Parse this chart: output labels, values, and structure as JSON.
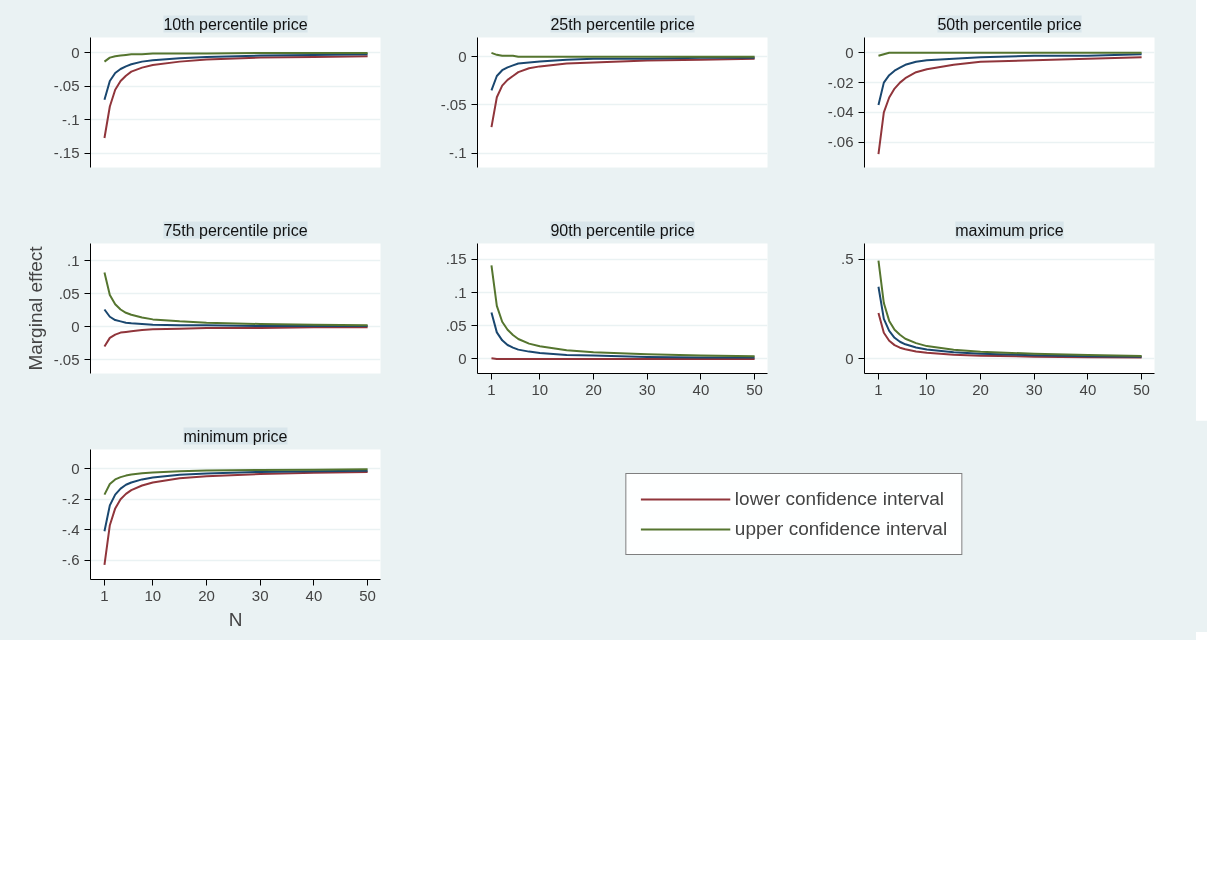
{
  "chart_data": [
    {
      "type": "line",
      "title": "10th percentile price",
      "x": [
        1,
        2,
        3,
        4,
        5,
        6,
        8,
        10,
        15,
        20,
        30,
        40,
        50
      ],
      "xlim": [
        -1.6,
        52.4
      ],
      "xticks": [
        1,
        10,
        20,
        30,
        40,
        50
      ],
      "ylim": [
        -0.171,
        0.023
      ],
      "yticks": [
        {
          "value": -0.15,
          "label": "-.15"
        },
        {
          "value": -0.1,
          "label": "-.1"
        },
        {
          "value": -0.05,
          "label": "-.05"
        },
        0
      ],
      "grid": "y",
      "tick_labels": "y",
      "series": [
        {
          "color": "#90353b",
          "values": [
            -0.127,
            -0.08,
            -0.055,
            -0.042,
            -0.034,
            -0.028,
            -0.022,
            -0.018,
            -0.013,
            -0.01,
            -0.007,
            -0.006,
            -0.005
          ]
        },
        {
          "color": "#1a476f",
          "values": [
            -0.07,
            -0.042,
            -0.03,
            -0.024,
            -0.02,
            -0.017,
            -0.013,
            -0.011,
            -0.008,
            -0.006,
            -0.004,
            -0.003,
            -0.002
          ]
        },
        {
          "color": "#55752f",
          "values": [
            -0.013,
            -0.007,
            -0.005,
            -0.004,
            -0.003,
            -0.002,
            -0.002,
            -0.001,
            -0.001,
            -0.001,
            0,
            0,
            0
          ]
        }
      ]
    },
    {
      "type": "line",
      "title": "25th percentile price",
      "x": [
        1,
        2,
        3,
        4,
        5,
        6,
        8,
        10,
        15,
        20,
        30,
        40,
        50
      ],
      "xlim": [
        -1.6,
        52.4
      ],
      "xticks": [
        1,
        10,
        20,
        30,
        40,
        50
      ],
      "ylim": [
        -0.115,
        0.02
      ],
      "yticks": [
        {
          "value": -0.1,
          "label": "-.1"
        },
        {
          "value": -0.05,
          "label": "-.05"
        },
        0
      ],
      "grid": "y",
      "tick_labels": "y",
      "series": [
        {
          "color": "#90353b",
          "values": [
            -0.073,
            -0.042,
            -0.03,
            -0.024,
            -0.02,
            -0.016,
            -0.012,
            -0.01,
            -0.007,
            -0.006,
            -0.004,
            -0.003,
            -0.002
          ]
        },
        {
          "color": "#1a476f",
          "values": [
            -0.035,
            -0.02,
            -0.014,
            -0.011,
            -0.009,
            -0.007,
            -0.006,
            -0.005,
            -0.003,
            -0.002,
            -0.002,
            -0.001,
            -0.001
          ]
        },
        {
          "color": "#55752f",
          "values": [
            0.004,
            0.002,
            0.001,
            0.001,
            0.001,
            0,
            0,
            0,
            0,
            0,
            0,
            0,
            0
          ]
        }
      ]
    },
    {
      "type": "line",
      "title": "50th percentile price",
      "x": [
        1,
        2,
        3,
        4,
        5,
        6,
        8,
        10,
        15,
        20,
        30,
        40,
        50
      ],
      "xlim": [
        -1.6,
        52.4
      ],
      "xticks": [
        1,
        10,
        20,
        30,
        40,
        50
      ],
      "ylim": [
        -0.077,
        0.0103
      ],
      "yticks": [
        {
          "value": -0.06,
          "label": "-.06"
        },
        {
          "value": -0.04,
          "label": "-.04"
        },
        {
          "value": -0.02,
          "label": "-.02"
        },
        0
      ],
      "grid": "y",
      "tick_labels": "y",
      "series": [
        {
          "color": "#90353b",
          "values": [
            -0.068,
            -0.04,
            -0.03,
            -0.024,
            -0.02,
            -0.017,
            -0.013,
            -0.011,
            -0.008,
            -0.006,
            -0.005,
            -0.004,
            -0.003
          ]
        },
        {
          "color": "#1a476f",
          "values": [
            -0.035,
            -0.02,
            -0.015,
            -0.012,
            -0.01,
            -0.008,
            -0.006,
            -0.005,
            -0.004,
            -0.003,
            -0.002,
            -0.002,
            -0.001
          ]
        },
        {
          "color": "#55752f",
          "values": [
            -0.002,
            -0.001,
            0,
            0,
            0,
            0,
            0,
            0,
            0,
            0,
            0,
            0,
            0
          ]
        }
      ]
    },
    {
      "type": "line",
      "title": "75th percentile price",
      "ylabel": "Marginal effect",
      "x": [
        1,
        2,
        3,
        4,
        5,
        6,
        8,
        10,
        15,
        20,
        30,
        40,
        50
      ],
      "xlim": [
        -1.6,
        52.4
      ],
      "xticks": [
        1,
        10,
        20,
        30,
        40,
        50
      ],
      "ylim": [
        -0.071,
        0.126
      ],
      "yticks": [
        {
          "value": -0.05,
          "label": "-.05"
        },
        0,
        {
          "value": 0.05,
          "label": ".05"
        },
        {
          "value": 0.1,
          "label": ".1"
        }
      ],
      "grid": "y",
      "tick_labels": "y",
      "series": [
        {
          "color": "#90353b",
          "values": [
            -0.03,
            -0.017,
            -0.012,
            -0.009,
            -0.008,
            -0.007,
            -0.005,
            -0.004,
            -0.003,
            -0.002,
            -0.002,
            -0.001,
            -0.001
          ]
        },
        {
          "color": "#1a476f",
          "values": [
            0.026,
            0.015,
            0.01,
            0.008,
            0.006,
            0.005,
            0.004,
            0.003,
            0.002,
            0.002,
            0.001,
            0.001,
            0.001
          ]
        },
        {
          "color": "#55752f",
          "values": [
            0.082,
            0.048,
            0.034,
            0.026,
            0.021,
            0.018,
            0.014,
            0.011,
            0.008,
            0.006,
            0.004,
            0.003,
            0.002
          ]
        }
      ]
    },
    {
      "type": "line",
      "title": "90th percentile price",
      "x": [
        1,
        2,
        3,
        4,
        5,
        6,
        8,
        10,
        15,
        20,
        30,
        40,
        50
      ],
      "xlim": [
        -1.6,
        52.4
      ],
      "xticks": [
        1,
        10,
        20,
        30,
        40,
        50
      ],
      "ylim": [
        -0.022,
        0.174
      ],
      "yticks": [
        0,
        {
          "value": 0.05,
          "label": ".05"
        },
        {
          "value": 0.1,
          "label": ".1"
        },
        {
          "value": 0.15,
          "label": ".15"
        }
      ],
      "grid": "y",
      "series": [
        {
          "color": "#90353b",
          "values": [
            0.001,
            0,
            0,
            0,
            0,
            0,
            0,
            0,
            0,
            0,
            0,
            0,
            0
          ]
        },
        {
          "color": "#1a476f",
          "values": [
            0.07,
            0.04,
            0.028,
            0.021,
            0.017,
            0.014,
            0.011,
            0.009,
            0.006,
            0.005,
            0.003,
            0.002,
            0.002
          ]
        },
        {
          "color": "#55752f",
          "values": [
            0.141,
            0.08,
            0.056,
            0.044,
            0.036,
            0.03,
            0.023,
            0.019,
            0.013,
            0.01,
            0.007,
            0.005,
            0.004
          ]
        }
      ]
    },
    {
      "type": "line",
      "title": "maximum price",
      "x": [
        1,
        2,
        3,
        4,
        5,
        6,
        8,
        10,
        15,
        20,
        30,
        40,
        50
      ],
      "xlim": [
        -1.6,
        52.4
      ],
      "xticks": [
        1,
        10,
        20,
        30,
        40,
        50
      ],
      "ylim": [
        -0.075,
        0.58
      ],
      "yticks": [
        0,
        {
          "value": 0.5,
          "label": ".5"
        }
      ],
      "grid": "y",
      "series": [
        {
          "color": "#90353b",
          "values": [
            0.23,
            0.13,
            0.09,
            0.068,
            0.055,
            0.047,
            0.036,
            0.029,
            0.02,
            0.015,
            0.01,
            0.007,
            0.005
          ]
        },
        {
          "color": "#1a476f",
          "values": [
            0.362,
            0.2,
            0.14,
            0.105,
            0.085,
            0.072,
            0.056,
            0.046,
            0.032,
            0.025,
            0.017,
            0.012,
            0.009
          ]
        },
        {
          "color": "#55752f",
          "values": [
            0.494,
            0.28,
            0.19,
            0.145,
            0.12,
            0.1,
            0.078,
            0.063,
            0.045,
            0.035,
            0.024,
            0.018,
            0.013
          ]
        }
      ]
    },
    {
      "type": "line",
      "title": "minimum price",
      "xlabel": "N",
      "legend": "right",
      "x": [
        1,
        2,
        3,
        4,
        5,
        6,
        8,
        10,
        15,
        20,
        30,
        40,
        50
      ],
      "xlim": [
        -1.6,
        52.4
      ],
      "xticks": [
        1,
        10,
        20,
        30,
        40,
        50
      ],
      "ylim": [
        -0.726,
        0.126
      ],
      "yticks": [
        {
          "value": -0.6,
          "label": "-.6"
        },
        {
          "value": -0.4,
          "label": "-.4"
        },
        {
          "value": -0.2,
          "label": "-.2"
        },
        0
      ],
      "grid": "y",
      "series": [
        {
          "name": "lower confidence interval",
          "color": "#90353b",
          "values": [
            -0.63,
            -0.37,
            -0.26,
            -0.2,
            -0.165,
            -0.14,
            -0.11,
            -0.09,
            -0.063,
            -0.05,
            -0.035,
            -0.027,
            -0.022
          ]
        },
        {
          "color": "#1a476f",
          "values": [
            -0.41,
            -0.24,
            -0.17,
            -0.13,
            -0.105,
            -0.09,
            -0.07,
            -0.057,
            -0.04,
            -0.031,
            -0.021,
            -0.016,
            -0.013
          ]
        },
        {
          "name": "upper confidence interval",
          "color": "#55752f",
          "values": [
            -0.17,
            -0.1,
            -0.07,
            -0.055,
            -0.045,
            -0.038,
            -0.03,
            -0.024,
            -0.016,
            -0.012,
            -0.008,
            -0.006,
            -0.004
          ]
        }
      ]
    }
  ]
}
